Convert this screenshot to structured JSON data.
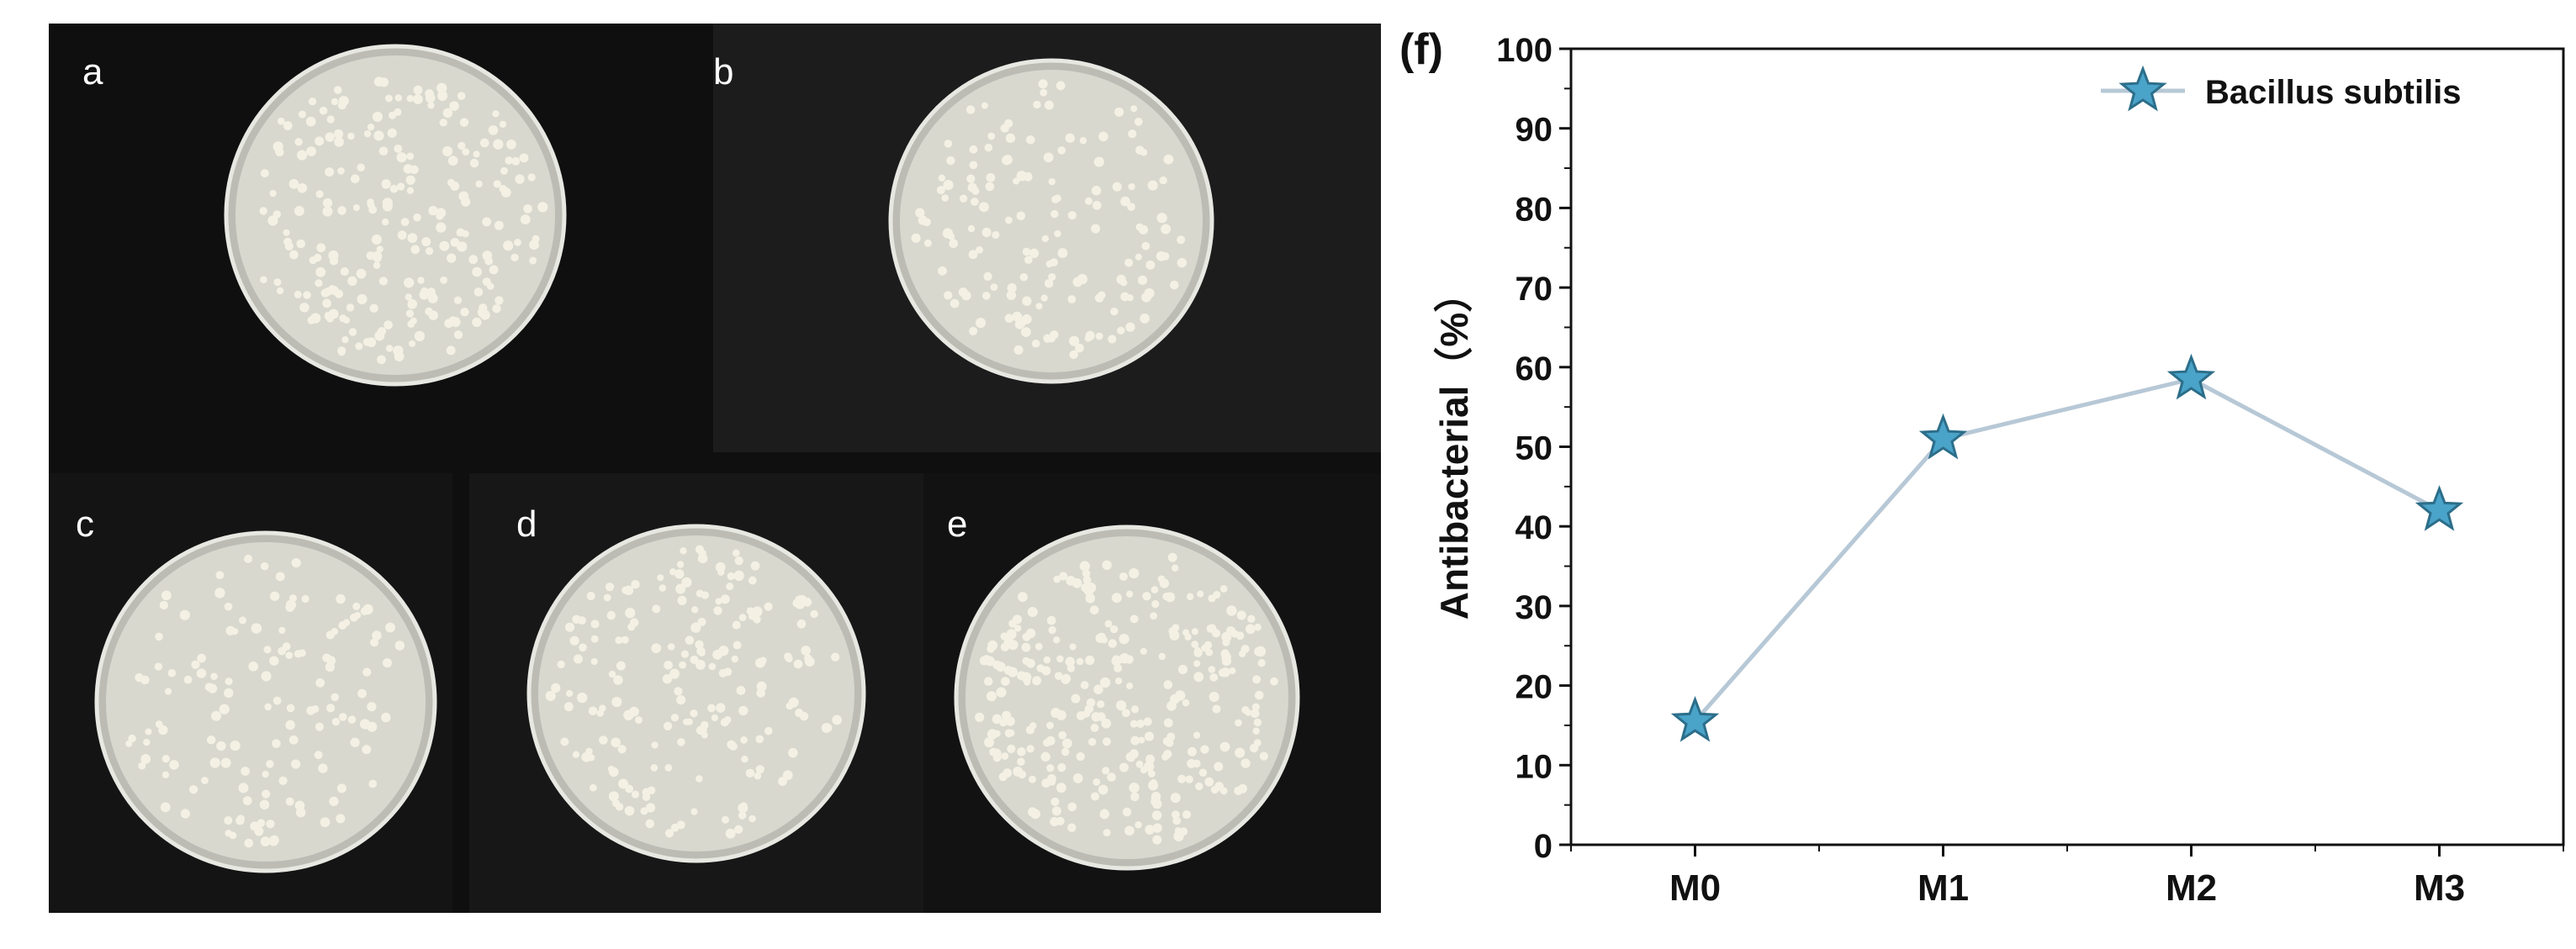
{
  "photos": {
    "labels": [
      "a",
      "b",
      "c",
      "d",
      "e"
    ],
    "background_color": "#0f0f10",
    "agar_color": "#d8d8cf",
    "colony_color": "#f4f1e4"
  },
  "chart_data": {
    "type": "line",
    "panel_label": "(f)",
    "categories": [
      "M0",
      "M1",
      "M2",
      "M3"
    ],
    "series": [
      {
        "name": "Bacillus subtilis",
        "values": [
          15.5,
          51,
          58.5,
          42
        ]
      }
    ],
    "ylabel": "Antibacterial（%）",
    "xlabel": "",
    "ylim": [
      0,
      100
    ],
    "yticks": [
      0,
      10,
      20,
      30,
      40,
      50,
      60,
      70,
      80,
      90,
      100
    ],
    "legend_position": "top-right",
    "grid": false,
    "line_color": "#b7c8d6",
    "marker": "star",
    "marker_color": "#4aa3c9",
    "marker_edge_color": "#2c6e8a"
  }
}
